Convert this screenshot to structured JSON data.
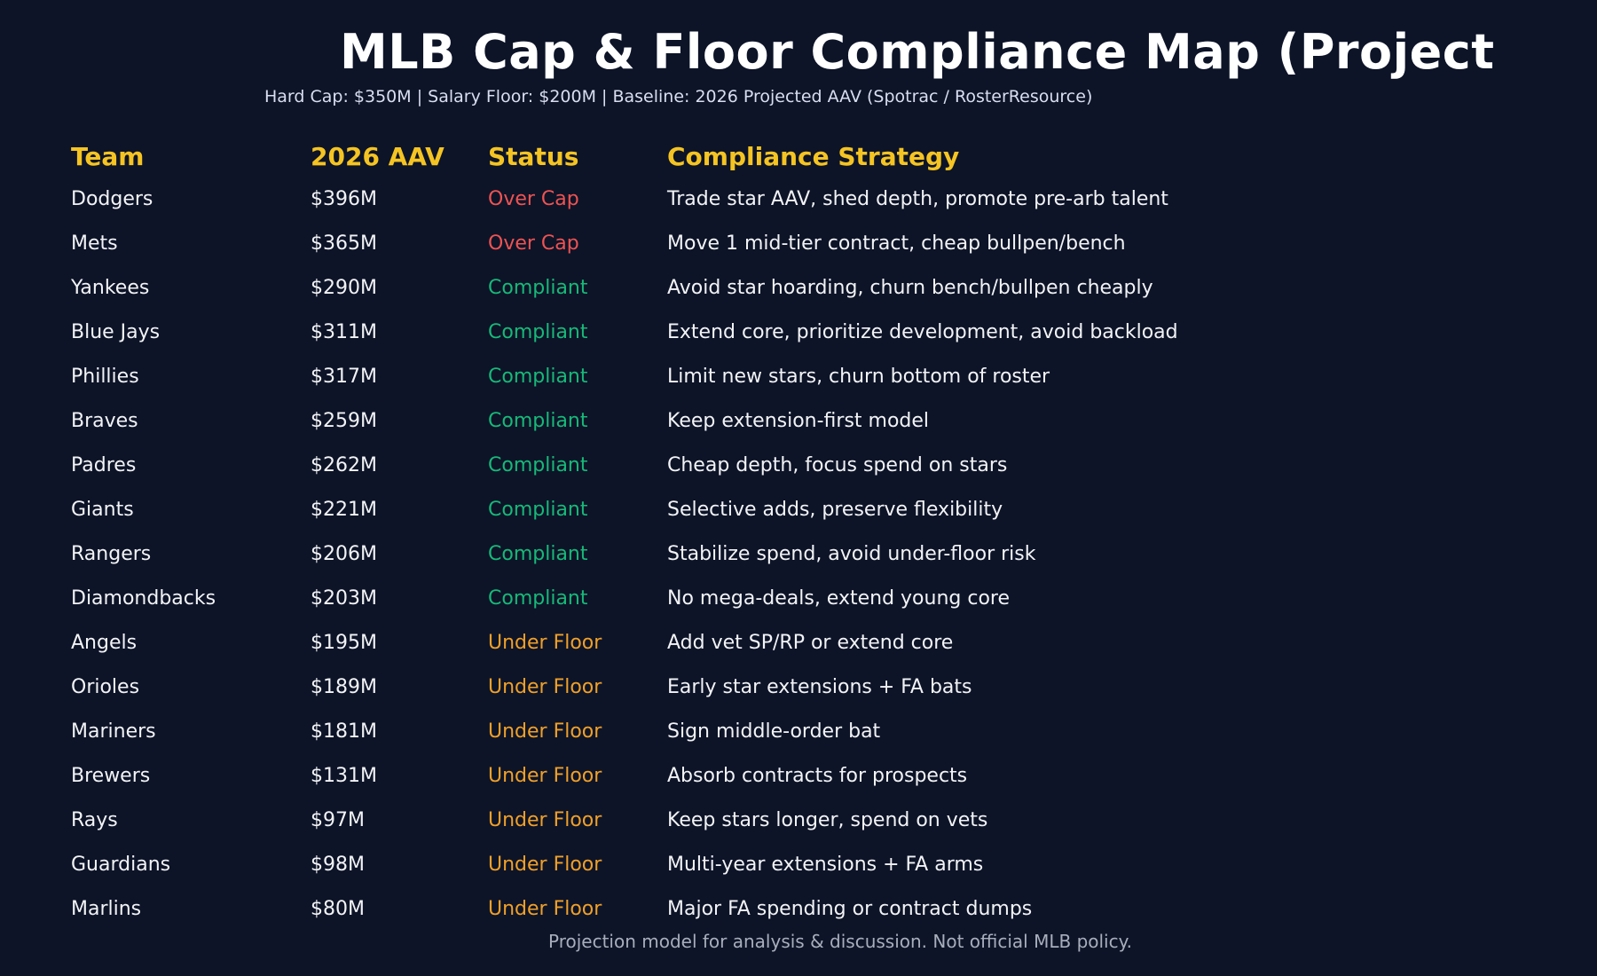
{
  "page": {
    "title": "MLB Cap & Floor Compliance Map (Project",
    "subtitle": "Hard Cap: $350M | Salary Floor: $200M | Baseline: 2026 Projected AAV (Spotrac / RosterResource)",
    "footer": "Projection model for analysis & discussion. Not official MLB policy."
  },
  "colors": {
    "background": "#0d1428",
    "title": "#ffffff",
    "subtitle": "#d9def0",
    "header": "#f5c422",
    "row_text": "#f2f3f5",
    "footer": "#a8aeba",
    "status": {
      "Over Cap": "#ee5352",
      "Compliant": "#17b978",
      "Under Floor": "#f0a028"
    }
  },
  "chart_data": {
    "type": "table",
    "title": "MLB Cap & Floor Compliance Map (Project",
    "subtitle": "Hard Cap: $350M | Salary Floor: $200M | Baseline: 2026 Projected AAV (Spotrac / RosterResource)",
    "hard_cap": "$350M",
    "salary_floor": "$200M",
    "baseline": "2026 Projected AAV (Spotrac / RosterResource)",
    "columns": [
      "Team",
      "2026 AAV",
      "Status",
      "Compliance Strategy"
    ],
    "rows": [
      {
        "team": "Dodgers",
        "aav": "$396M",
        "status": "Over Cap",
        "strategy": "Trade star AAV, shed depth, promote pre-arb talent"
      },
      {
        "team": "Mets",
        "aav": "$365M",
        "status": "Over Cap",
        "strategy": "Move 1 mid-tier contract, cheap bullpen/bench"
      },
      {
        "team": "Yankees",
        "aav": "$290M",
        "status": "Compliant",
        "strategy": "Avoid star hoarding, churn bench/bullpen cheaply"
      },
      {
        "team": "Blue Jays",
        "aav": "$311M",
        "status": "Compliant",
        "strategy": "Extend core, prioritize development, avoid backload"
      },
      {
        "team": "Phillies",
        "aav": "$317M",
        "status": "Compliant",
        "strategy": "Limit new stars, churn bottom of roster"
      },
      {
        "team": "Braves",
        "aav": "$259M",
        "status": "Compliant",
        "strategy": "Keep extension-first model"
      },
      {
        "team": "Padres",
        "aav": "$262M",
        "status": "Compliant",
        "strategy": "Cheap depth, focus spend on stars"
      },
      {
        "team": "Giants",
        "aav": "$221M",
        "status": "Compliant",
        "strategy": "Selective adds, preserve flexibility"
      },
      {
        "team": "Rangers",
        "aav": "$206M",
        "status": "Compliant",
        "strategy": "Stabilize spend, avoid under-floor risk"
      },
      {
        "team": "Diamondbacks",
        "aav": "$203M",
        "status": "Compliant",
        "strategy": "No mega-deals, extend young core"
      },
      {
        "team": "Angels",
        "aav": "$195M",
        "status": "Under Floor",
        "strategy": "Add vet SP/RP or extend core"
      },
      {
        "team": "Orioles",
        "aav": "$189M",
        "status": "Under Floor",
        "strategy": "Early star extensions + FA bats"
      },
      {
        "team": "Mariners",
        "aav": "$181M",
        "status": "Under Floor",
        "strategy": "Sign middle-order bat"
      },
      {
        "team": "Brewers",
        "aav": "$131M",
        "status": "Under Floor",
        "strategy": "Absorb contracts for prospects"
      },
      {
        "team": "Rays",
        "aav": "$97M",
        "status": "Under Floor",
        "strategy": "Keep stars longer, spend on vets"
      },
      {
        "team": "Guardians",
        "aav": "$98M",
        "status": "Under Floor",
        "strategy": "Multi-year extensions + FA arms"
      },
      {
        "team": "Marlins",
        "aav": "$80M",
        "status": "Under Floor",
        "strategy": "Major FA spending or contract dumps"
      }
    ]
  }
}
